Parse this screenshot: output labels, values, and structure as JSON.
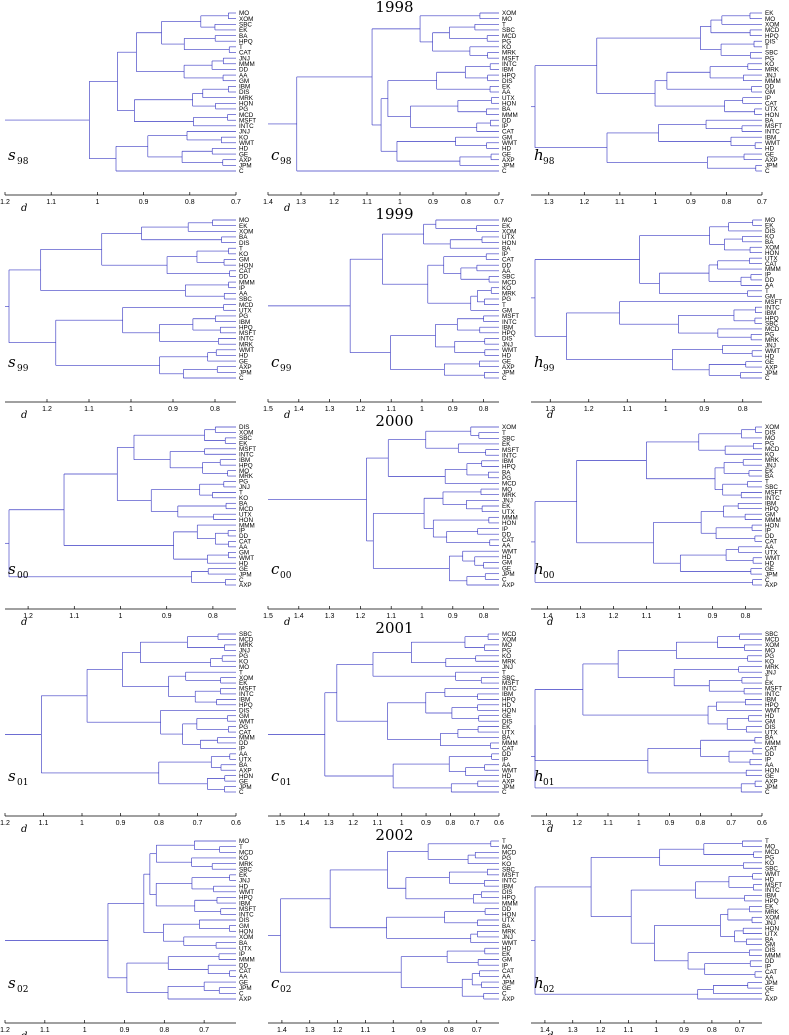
{
  "years": [
    "1998",
    "1999",
    "2000",
    "2001",
    "2002"
  ],
  "axis_symbol": "d",
  "colors": {
    "tree": "#3d3dc4",
    "text": "#000000"
  },
  "panels": [
    {
      "id": "s98",
      "letter": "s",
      "sub": "98",
      "ticks": [
        "1.2",
        "1.1",
        "1",
        "0.9",
        "0.8",
        "0.7"
      ],
      "domain": [
        1.2,
        0.7
      ],
      "show_d": true,
      "leaves": [
        "MO",
        "XOM",
        "SBC",
        "EK",
        "BA",
        "HPQ",
        "T",
        "CAT",
        "JNJ",
        "MMM",
        "DD",
        "AA",
        "GM",
        "IBM",
        "DIS",
        "MRK",
        "HON",
        "PG",
        "MCD",
        "MSFT",
        "INTC",
        "JNJ",
        "KO",
        "WMT",
        "HD",
        "GE",
        "AXP",
        "JPM",
        "C"
      ]
    },
    {
      "id": "c98",
      "letter": "c",
      "sub": "98",
      "ticks": [
        "1.4",
        "1.3",
        "1.2",
        "1.1",
        "1",
        "0.9",
        "0.8",
        "0.7"
      ],
      "domain": [
        1.4,
        0.7
      ],
      "show_d": true,
      "leaves": [
        "XOM",
        "MO",
        "T",
        "SBC",
        "MCD",
        "PG",
        "KO",
        "MRK",
        "MSFT",
        "INTC",
        "IBM",
        "HPQ",
        "DIS",
        "EK",
        "AA",
        "UTX",
        "HON",
        "BA",
        "MMM",
        "DD",
        "IP",
        "CAT",
        "GM",
        "WMT",
        "HD",
        "GE",
        "AXP",
        "JPM",
        "C"
      ]
    },
    {
      "id": "h98",
      "letter": "h",
      "sub": "98",
      "ticks": [
        "1.3",
        "1.2",
        "1.1",
        "1",
        "0.9",
        "0.8",
        "0.7"
      ],
      "domain": [
        1.35,
        0.7
      ],
      "show_d": false,
      "leaves": [
        "EK",
        "MO",
        "XOM",
        "MCD",
        "HPQ",
        "DIS",
        "T",
        "SBC",
        "PG",
        "KO",
        "MRK",
        "JNJ",
        "MMM",
        "DD",
        "GM",
        "IP",
        "CAT",
        "UTX",
        "HON",
        "BA",
        "MSFT",
        "INTC",
        "IBM",
        "WMT",
        "HD",
        "GE",
        "AXP",
        "JPM",
        "C"
      ]
    },
    {
      "id": "s99",
      "letter": "s",
      "sub": "99",
      "ticks": [
        "1.2",
        "1.1",
        "1",
        "0.9",
        "0.8"
      ],
      "domain": [
        1.3,
        0.75
      ],
      "show_d": true,
      "leaves": [
        "MO",
        "EK",
        "XOM",
        "BA",
        "DIS",
        "T",
        "KO",
        "GM",
        "HON",
        "CAT",
        "DD",
        "MMM",
        "IP",
        "AA",
        "SBC",
        "MCD",
        "UTX",
        "PG",
        "IBM",
        "HPQ",
        "MSFT",
        "INTC",
        "MRK",
        "WMT",
        "HD",
        "GE",
        "AXP",
        "JPM",
        "C"
      ]
    },
    {
      "id": "c99",
      "letter": "c",
      "sub": "99",
      "ticks": [
        "1.5",
        "1.4",
        "1.3",
        "1.2",
        "1.1",
        "1",
        "0.9",
        "0.8"
      ],
      "domain": [
        1.5,
        0.75
      ],
      "show_d": true,
      "leaves": [
        "MO",
        "EK",
        "XOM",
        "UTX",
        "HON",
        "BA",
        "IP",
        "CAT",
        "DD",
        "AA",
        "SBC",
        "MCD",
        "KO",
        "MRK",
        "PG",
        "T",
        "GM",
        "MSFT",
        "INTC",
        "IBM",
        "HPQ",
        "DIS",
        "JNJ",
        "WMT",
        "HD",
        "GE",
        "AXP",
        "JPM",
        "C"
      ]
    },
    {
      "id": "h99",
      "letter": "h",
      "sub": "99",
      "ticks": [
        "1.3",
        "1.2",
        "1.1",
        "1",
        "0.9",
        "0.8"
      ],
      "domain": [
        1.35,
        0.75
      ],
      "show_d": true,
      "leaves": [
        "MO",
        "EK",
        "DIS",
        "KO",
        "BA",
        "XOM",
        "HON",
        "UTX",
        "CAT",
        "MMM",
        "IP",
        "DD",
        "AA",
        "T",
        "GM",
        "MSFT",
        "INTC",
        "IBM",
        "HPQ",
        "SBC",
        "MCD",
        "PG",
        "MRK",
        "JNJ",
        "WMT",
        "HD",
        "GE",
        "AXP",
        "JPM",
        "C"
      ]
    },
    {
      "id": "s00",
      "letter": "s",
      "sub": "00",
      "ticks": [
        "1.2",
        "1.1",
        "1",
        "0.9",
        "0.8"
      ],
      "domain": [
        1.25,
        0.75
      ],
      "show_d": true,
      "leaves": [
        "DIS",
        "XOM",
        "SBC",
        "EK",
        "MSFT",
        "INTC",
        "IBM",
        "HPQ",
        "MO",
        "MRK",
        "PG",
        "JNJ",
        "T",
        "KO",
        "BA",
        "MCD",
        "UTX",
        "HON",
        "MMM",
        "IP",
        "DD",
        "CAT",
        "AA",
        "GM",
        "WMT",
        "HD",
        "GE",
        "JPM",
        "C",
        "AXP"
      ]
    },
    {
      "id": "c00",
      "letter": "c",
      "sub": "00",
      "ticks": [
        "1.5",
        "1.4",
        "1.3",
        "1.2",
        "1.1",
        "1",
        "0.9",
        "0.8"
      ],
      "domain": [
        1.5,
        0.75
      ],
      "show_d": true,
      "leaves": [
        "XOM",
        "T",
        "SBC",
        "EK",
        "MSFT",
        "INTC",
        "IBM",
        "HPQ",
        "BA",
        "PG",
        "MCD",
        "MO",
        "MRK",
        "JNJ",
        "EK",
        "UTX",
        "MMM",
        "HON",
        "IP",
        "DD",
        "CAT",
        "AA",
        "WMT",
        "HD",
        "GM",
        "GE",
        "JPM",
        "C",
        "AXP"
      ]
    },
    {
      "id": "h00",
      "letter": "h",
      "sub": "00",
      "ticks": [
        "1.4",
        "1.3",
        "1.2",
        "1.1",
        "1",
        "0.9",
        "0.8"
      ],
      "domain": [
        1.45,
        0.75
      ],
      "show_d": true,
      "leaves": [
        "XOM",
        "DIS",
        "MO",
        "PG",
        "MCD",
        "KO",
        "MRK",
        "JNJ",
        "EK",
        "BA",
        "T",
        "SBC",
        "MSFT",
        "INTC",
        "IBM",
        "HPQ",
        "GM",
        "MMM",
        "HON",
        "IP",
        "DD",
        "CAT",
        "AA",
        "UTX",
        "WMT",
        "HD",
        "GE",
        "JPM",
        "C",
        "AXP"
      ]
    },
    {
      "id": "s01",
      "letter": "s",
      "sub": "01",
      "ticks": [
        "1.2",
        "1.1",
        "1",
        "0.9",
        "0.8",
        "0.7",
        "0.6"
      ],
      "domain": [
        1.2,
        0.6
      ],
      "show_d": true,
      "leaves": [
        "SBC",
        "MCD",
        "MRK",
        "JNJ",
        "PG",
        "KO",
        "MO",
        "T",
        "XOM",
        "EK",
        "MSFT",
        "INTC",
        "IBM",
        "HPQ",
        "DIS",
        "GM",
        "WMT",
        "PG",
        "CAT",
        "MMM",
        "DD",
        "IP",
        "AA",
        "UTX",
        "BA",
        "AXP",
        "HON",
        "GE",
        "JPM",
        "C"
      ]
    },
    {
      "id": "c01",
      "letter": "c",
      "sub": "01",
      "ticks": [
        "1.5",
        "1.4",
        "1.3",
        "1.2",
        "1.1",
        "1",
        "0.9",
        "0.8",
        "0.7",
        "0.6"
      ],
      "domain": [
        1.55,
        0.6
      ],
      "show_d": false,
      "leaves": [
        "MCD",
        "XOM",
        "MO",
        "PG",
        "KO",
        "MRK",
        "JNJ",
        "T",
        "SBC",
        "MSFT",
        "INTC",
        "IBM",
        "HPQ",
        "HD",
        "HON",
        "GE",
        "DIS",
        "EK",
        "UTX",
        "BA",
        "MMM",
        "CAT",
        "DD",
        "IP",
        "AA",
        "WMT",
        "HD",
        "AXP",
        "JPM",
        "C"
      ]
    },
    {
      "id": "h01",
      "letter": "h",
      "sub": "01",
      "ticks": [
        "1.3",
        "1.2",
        "1.1",
        "1",
        "0.9",
        "0.8",
        "0.7",
        "0.6"
      ],
      "domain": [
        1.35,
        0.6
      ],
      "show_d": true,
      "leaves": [
        "SBC",
        "MCD",
        "XOM",
        "MO",
        "PG",
        "KO",
        "MRK",
        "JNJ",
        "T",
        "EK",
        "MSFT",
        "INTC",
        "IBM",
        "HPQ",
        "WMT",
        "HD",
        "GM",
        "DIS",
        "UTX",
        "BA",
        "MMM",
        "CAT",
        "DD",
        "IP",
        "AA",
        "HON",
        "GE",
        "AXP",
        "JPM",
        "C"
      ]
    },
    {
      "id": "s02",
      "letter": "s",
      "sub": "02",
      "ticks": [
        "1.2",
        "1.1",
        "1",
        "0.9",
        "0.8",
        "0.7"
      ],
      "domain": [
        1.2,
        0.62
      ],
      "show_d": true,
      "leaves": [
        "MO",
        "T",
        "MCD",
        "KO",
        "MRK",
        "SBC",
        "EK",
        "JNJ",
        "HD",
        "WMT",
        "HPQ",
        "IBM",
        "MSFT",
        "INTC",
        "DIS",
        "GM",
        "HON",
        "XOM",
        "BA",
        "UTX",
        "IP",
        "MMM",
        "DD",
        "CAT",
        "AA",
        "GE",
        "JPM",
        "C",
        "AXP"
      ]
    },
    {
      "id": "c02",
      "letter": "c",
      "sub": "02",
      "ticks": [
        "1.4",
        "1.3",
        "1.2",
        "1.1",
        "1",
        "0.9",
        "0.8",
        "0.7"
      ],
      "domain": [
        1.45,
        0.62
      ],
      "show_d": false,
      "leaves": [
        "T",
        "MO",
        "MCD",
        "PG",
        "KO",
        "SBC",
        "MSFT",
        "INTC",
        "IBM",
        "DIS",
        "HPQ",
        "MMM",
        "DD",
        "HON",
        "UTX",
        "BA",
        "MRK",
        "JNJ",
        "WMT",
        "HD",
        "EK",
        "GM",
        "IP",
        "CAT",
        "AA",
        "JPM",
        "GE",
        "C",
        "AXP"
      ]
    },
    {
      "id": "h02",
      "letter": "h",
      "sub": "02",
      "ticks": [
        "1.4",
        "1.3",
        "1.2",
        "1.1",
        "1",
        "0.9",
        "0.8",
        "0.7"
      ],
      "domain": [
        1.45,
        0.62
      ],
      "show_d": true,
      "leaves": [
        "T",
        "MO",
        "MCD",
        "PG",
        "KO",
        "SBC",
        "WMT",
        "HD",
        "MSFT",
        "INTC",
        "IBM",
        "HPQ",
        "EK",
        "MRK",
        "XOM",
        "JNJ",
        "HON",
        "UTX",
        "BA",
        "GM",
        "DIS",
        "MMM",
        "DD",
        "IP",
        "CAT",
        "AA",
        "JPM",
        "GE",
        "C",
        "AXP"
      ]
    }
  ]
}
